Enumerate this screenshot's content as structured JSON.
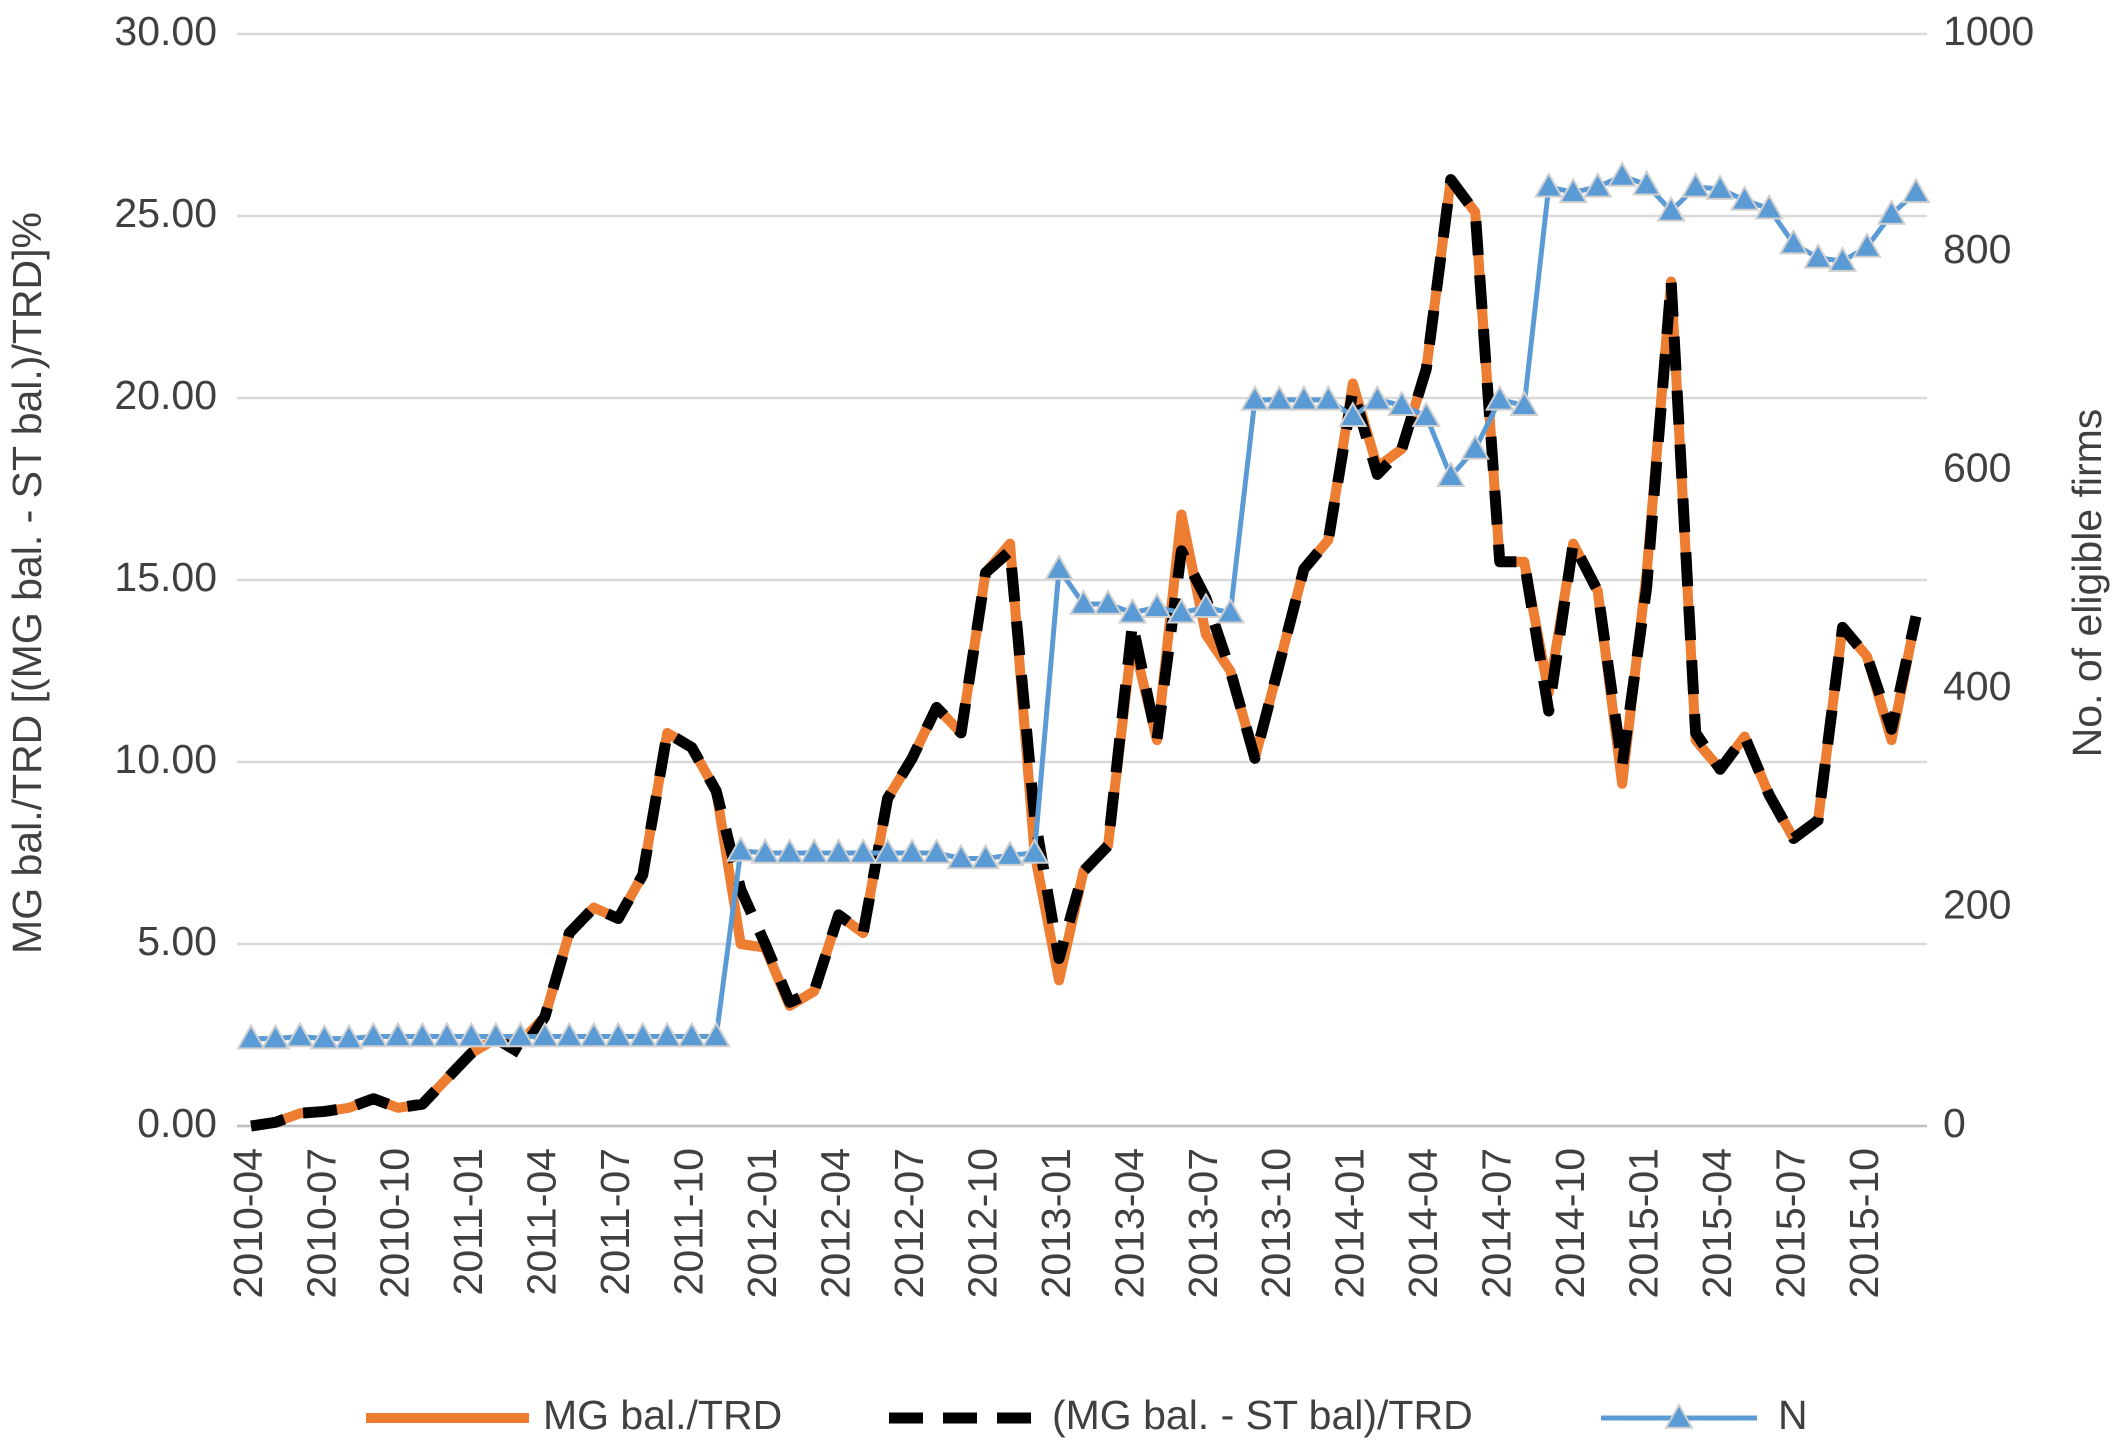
{
  "chart_data": {
    "type": "line",
    "y_label": "MG bal./TRD [(MG bal. - ST bal.)/TRD]%",
    "y2_label": "No. of eligible firms",
    "categories": [
      "2010-04",
      null,
      null,
      "2010-07",
      null,
      null,
      "2010-10",
      null,
      null,
      "2011-01",
      null,
      null,
      "2011-04",
      null,
      null,
      "2011-07",
      null,
      null,
      "2011-10",
      null,
      null,
      "2012-01",
      null,
      null,
      "2012-04",
      null,
      null,
      "2012-07",
      null,
      null,
      "2012-10",
      null,
      null,
      "2013-01",
      null,
      null,
      "2013-04",
      null,
      null,
      "2013-07",
      null,
      null,
      "2013-10",
      null,
      null,
      "2014-01",
      null,
      null,
      "2014-04",
      null,
      null,
      "2014-07",
      null,
      null,
      "2014-10",
      null,
      null,
      "2015-01",
      null,
      null,
      "2015-04",
      null,
      null,
      "2015-07",
      null,
      null,
      "2015-10",
      null,
      null
    ],
    "ylim": [
      0,
      30
    ],
    "yticks": [
      {
        "value": 0,
        "label": "0.00"
      },
      {
        "value": 5,
        "label": "5.00"
      },
      {
        "value": 10,
        "label": "10.00"
      },
      {
        "value": 15,
        "label": "15.00"
      },
      {
        "value": 20,
        "label": "20.00"
      },
      {
        "value": 25,
        "label": "25.00"
      },
      {
        "value": 30,
        "label": "30.00"
      }
    ],
    "y2lim": [
      0,
      1000
    ],
    "y2ticks": [
      0,
      200,
      400,
      600,
      800,
      1000
    ],
    "grid": true,
    "legend": "bottom",
    "series": [
      {
        "name": "MG bal./TRD",
        "color": "#ED7D31",
        "style": "solid",
        "values": [
          0.0,
          0.1,
          0.35,
          0.4,
          0.5,
          0.75,
          0.5,
          0.6,
          1.3,
          2.0,
          2.4,
          2.3,
          3.0,
          5.3,
          6.0,
          5.7,
          6.9,
          10.8,
          10.4,
          9.2,
          5.0,
          4.9,
          3.3,
          3.7,
          5.8,
          5.3,
          9.0,
          10.1,
          11.5,
          10.8,
          15.2,
          16.0,
          7.5,
          4.0,
          7.0,
          7.7,
          13.4,
          10.6,
          16.8,
          13.5,
          12.5,
          10.1,
          12.7,
          15.3,
          16.1,
          20.4,
          18.1,
          18.6,
          20.8,
          26.0,
          25.1,
          15.5,
          15.5,
          11.9,
          16.0,
          14.7,
          9.4,
          15.2,
          23.2,
          10.6,
          9.8,
          10.7,
          9.1,
          7.9,
          8.4,
          13.7,
          12.9,
          10.6,
          14.0
        ]
      },
      {
        "name": "(MG bal. - ST bal)/TRD",
        "color": "#000000",
        "style": "dashed",
        "values": [
          0.0,
          0.1,
          0.35,
          0.4,
          0.5,
          0.75,
          0.5,
          0.6,
          1.3,
          2.0,
          2.4,
          2.0,
          3.0,
          5.3,
          6.0,
          5.7,
          6.9,
          10.8,
          10.4,
          9.2,
          6.5,
          5.0,
          3.4,
          3.7,
          5.8,
          5.3,
          9.0,
          10.1,
          11.5,
          10.8,
          15.2,
          15.8,
          8.5,
          4.6,
          7.0,
          7.7,
          13.8,
          10.6,
          15.8,
          14.5,
          12.5,
          10.1,
          12.7,
          15.3,
          16.1,
          20.2,
          17.9,
          18.6,
          20.8,
          26.0,
          25.1,
          15.5,
          15.5,
          11.4,
          16.0,
          14.7,
          9.9,
          14.8,
          23.2,
          10.8,
          9.8,
          10.7,
          9.1,
          7.9,
          8.4,
          13.7,
          12.9,
          10.9,
          14.0
        ]
      },
      {
        "name": "N",
        "color": "#5B9BD5",
        "style": "markers",
        "axis": "y2",
        "values": [
          80,
          80,
          82,
          80,
          80,
          82,
          82,
          82,
          82,
          82,
          82,
          82,
          82,
          82,
          82,
          82,
          82,
          82,
          82,
          82,
          252,
          250,
          250,
          250,
          250,
          250,
          250,
          250,
          250,
          245,
          245,
          248,
          250,
          510,
          478,
          478,
          470,
          475,
          470,
          475,
          470,
          665,
          665,
          665,
          665,
          650,
          665,
          660,
          650,
          595,
          620,
          665,
          660,
          860,
          855,
          860,
          870,
          862,
          838,
          860,
          858,
          848,
          840,
          808,
          795,
          792,
          805,
          835,
          855
        ]
      }
    ]
  }
}
